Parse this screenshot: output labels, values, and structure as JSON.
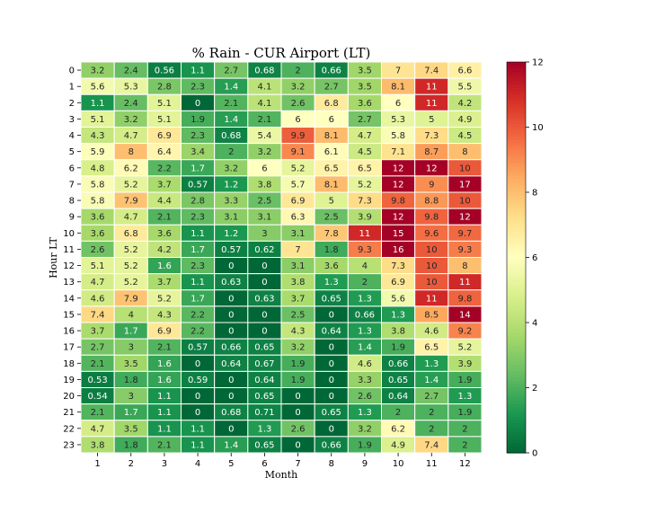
{
  "chart_data": {
    "type": "heatmap",
    "title": "% Rain - CUR Airport (LT)",
    "xlabel": "Month",
    "ylabel": "Hour LT",
    "x_categories": [
      "1",
      "2",
      "3",
      "4",
      "5",
      "6",
      "7",
      "8",
      "9",
      "10",
      "11",
      "12"
    ],
    "y_categories": [
      "0",
      "1",
      "2",
      "3",
      "4",
      "5",
      "6",
      "7",
      "8",
      "9",
      "10",
      "11",
      "12",
      "13",
      "14",
      "15",
      "16",
      "17",
      "18",
      "19",
      "20",
      "21",
      "22",
      "23"
    ],
    "values": [
      [
        3.2,
        2.4,
        0.56,
        1.1,
        2.7,
        0.68,
        2,
        0.66,
        3.5,
        7,
        7.4,
        6.6
      ],
      [
        5.6,
        5.3,
        2.8,
        2.3,
        1.4,
        4.1,
        3.2,
        2.7,
        3.5,
        8.1,
        11,
        5.5
      ],
      [
        1.1,
        2.4,
        5.1,
        0,
        2.1,
        4.1,
        2.6,
        6.8,
        3.6,
        6,
        11,
        4.2
      ],
      [
        5.1,
        3.2,
        5.1,
        1.9,
        1.4,
        2.1,
        6,
        6,
        2.7,
        5.3,
        5,
        4.9
      ],
      [
        4.3,
        4.7,
        6.9,
        2.3,
        0.68,
        5.4,
        9.9,
        8.1,
        4.7,
        5.8,
        7.3,
        4.5
      ],
      [
        5.9,
        8,
        6.4,
        3.4,
        2,
        3.2,
        9.1,
        6.1,
        4.5,
        7.1,
        8.7,
        8
      ],
      [
        4.8,
        6.2,
        2.2,
        1.7,
        3.2,
        6,
        5.2,
        6.5,
        6.5,
        12,
        12,
        10
      ],
      [
        5.8,
        5.2,
        3.7,
        0.57,
        1.2,
        3.8,
        5.7,
        8.1,
        5.2,
        12,
        9,
        17
      ],
      [
        5.8,
        7.9,
        4.4,
        2.8,
        3.3,
        2.5,
        6.9,
        5,
        7.3,
        9.8,
        8.8,
        10
      ],
      [
        3.6,
        4.7,
        2.1,
        2.3,
        3.1,
        3.1,
        6.3,
        2.5,
        3.9,
        12,
        9.8,
        12
      ],
      [
        3.6,
        6.8,
        3.6,
        1.1,
        1.2,
        3,
        3.1,
        7.8,
        11,
        15,
        9.6,
        9.7
      ],
      [
        2.6,
        5.2,
        4.2,
        1.7,
        0.57,
        0.62,
        7,
        1.8,
        9.3,
        16,
        10,
        9.3
      ],
      [
        5.1,
        5.2,
        1.6,
        2.3,
        0,
        0,
        3.1,
        3.6,
        4,
        7.3,
        10,
        8
      ],
      [
        4.7,
        5.2,
        3.7,
        1.1,
        0.63,
        0,
        3.8,
        1.3,
        2,
        6.9,
        10,
        11
      ],
      [
        4.6,
        7.9,
        5.2,
        1.7,
        0,
        0.63,
        3.7,
        0.65,
        1.3,
        5.6,
        11,
        9.8
      ],
      [
        7.4,
        4,
        4.3,
        2.2,
        0,
        0,
        2.5,
        0,
        0.66,
        1.3,
        8.5,
        14
      ],
      [
        3.7,
        1.7,
        6.9,
        2.2,
        0,
        0,
        4.3,
        0.64,
        1.3,
        3.8,
        4.6,
        9.2
      ],
      [
        2.7,
        3,
        2.1,
        0.57,
        0.66,
        0.65,
        3.2,
        0,
        1.4,
        1.9,
        6.5,
        5.2
      ],
      [
        2.1,
        3.5,
        1.6,
        0,
        0.64,
        0.67,
        1.9,
        0,
        4.6,
        0.66,
        1.3,
        3.9
      ],
      [
        0.53,
        1.8,
        1.6,
        0.59,
        0,
        0.64,
        1.9,
        0,
        3.3,
        0.65,
        1.4,
        1.9
      ],
      [
        0.54,
        3,
        1.1,
        0,
        0,
        0.65,
        0,
        0,
        2.6,
        0.64,
        2.7,
        1.3
      ],
      [
        2.1,
        1.7,
        1.1,
        0,
        0.68,
        0.71,
        0,
        0.65,
        1.3,
        2,
        2,
        1.9
      ],
      [
        4.7,
        3.5,
        1.1,
        1.1,
        0,
        1.3,
        2.6,
        0,
        3.2,
        6.2,
        2,
        2
      ],
      [
        3.8,
        1.8,
        2.1,
        1.1,
        1.4,
        0.65,
        0,
        0.66,
        1.9,
        4.9,
        7.4,
        2
      ]
    ],
    "value_labels": [
      [
        "3.2",
        "2.4",
        "0.56",
        "1.1",
        "2.7",
        "0.68",
        "2",
        "0.66",
        "3.5",
        "7",
        "7.4",
        "6.6"
      ],
      [
        "5.6",
        "5.3",
        "2.8",
        "2.3",
        "1.4",
        "4.1",
        "3.2",
        "2.7",
        "3.5",
        "8.1",
        "11",
        "5.5"
      ],
      [
        "1.1",
        "2.4",
        "5.1",
        "0",
        "2.1",
        "4.1",
        "2.6",
        "6.8",
        "3.6",
        "6",
        "11",
        "4.2"
      ],
      [
        "5.1",
        "3.2",
        "5.1",
        "1.9",
        "1.4",
        "2.1",
        "6",
        "6",
        "2.7",
        "5.3",
        "5",
        "4.9"
      ],
      [
        "4.3",
        "4.7",
        "6.9",
        "2.3",
        "0.68",
        "5.4",
        "9.9",
        "8.1",
        "4.7",
        "5.8",
        "7.3",
        "4.5"
      ],
      [
        "5.9",
        "8",
        "6.4",
        "3.4",
        "2",
        "3.2",
        "9.1",
        "6.1",
        "4.5",
        "7.1",
        "8.7",
        "8"
      ],
      [
        "4.8",
        "6.2",
        "2.2",
        "1.7",
        "3.2",
        "6",
        "5.2",
        "6.5",
        "6.5",
        "12",
        "12",
        "10"
      ],
      [
        "5.8",
        "5.2",
        "3.7",
        "0.57",
        "1.2",
        "3.8",
        "5.7",
        "8.1",
        "5.2",
        "12",
        "9",
        "17"
      ],
      [
        "5.8",
        "7.9",
        "4.4",
        "2.8",
        "3.3",
        "2.5",
        "6.9",
        "5",
        "7.3",
        "9.8",
        "8.8",
        "10"
      ],
      [
        "3.6",
        "4.7",
        "2.1",
        "2.3",
        "3.1",
        "3.1",
        "6.3",
        "2.5",
        "3.9",
        "12",
        "9.8",
        "12"
      ],
      [
        "3.6",
        "6.8",
        "3.6",
        "1.1",
        "1.2",
        "3",
        "3.1",
        "7.8",
        "11",
        "15",
        "9.6",
        "9.7"
      ],
      [
        "2.6",
        "5.2",
        "4.2",
        "1.7",
        "0.57",
        "0.62",
        "7",
        "1.8",
        "9.3",
        "16",
        "10",
        "9.3"
      ],
      [
        "5.1",
        "5.2",
        "1.6",
        "2.3",
        "0",
        "0",
        "3.1",
        "3.6",
        "4",
        "7.3",
        "10",
        "8"
      ],
      [
        "4.7",
        "5.2",
        "3.7",
        "1.1",
        "0.63",
        "0",
        "3.8",
        "1.3",
        "2",
        "6.9",
        "10",
        "11"
      ],
      [
        "4.6",
        "7.9",
        "5.2",
        "1.7",
        "0",
        "0.63",
        "3.7",
        "0.65",
        "1.3",
        "5.6",
        "11",
        "9.8"
      ],
      [
        "7.4",
        "4",
        "4.3",
        "2.2",
        "0",
        "0",
        "2.5",
        "0",
        "0.66",
        "1.3",
        "8.5",
        "14"
      ],
      [
        "3.7",
        "1.7",
        "6.9",
        "2.2",
        "0",
        "0",
        "4.3",
        "0.64",
        "1.3",
        "3.8",
        "4.6",
        "9.2"
      ],
      [
        "2.7",
        "3",
        "2.1",
        "0.57",
        "0.66",
        "0.65",
        "3.2",
        "0",
        "1.4",
        "1.9",
        "6.5",
        "5.2"
      ],
      [
        "2.1",
        "3.5",
        "1.6",
        "0",
        "0.64",
        "0.67",
        "1.9",
        "0",
        "4.6",
        "0.66",
        "1.3",
        "3.9"
      ],
      [
        "0.53",
        "1.8",
        "1.6",
        "0.59",
        "0",
        "0.64",
        "1.9",
        "0",
        "3.3",
        "0.65",
        "1.4",
        "1.9"
      ],
      [
        "0.54",
        "3",
        "1.1",
        "0",
        "0",
        "0.65",
        "0",
        "0",
        "2.6",
        "0.64",
        "2.7",
        "1.3"
      ],
      [
        "2.1",
        "1.7",
        "1.1",
        "0",
        "0.68",
        "0.71",
        "0",
        "0.65",
        "1.3",
        "2",
        "2",
        "1.9"
      ],
      [
        "4.7",
        "3.5",
        "1.1",
        "1.1",
        "0",
        "1.3",
        "2.6",
        "0",
        "3.2",
        "6.2",
        "2",
        "2"
      ],
      [
        "3.8",
        "1.8",
        "2.1",
        "1.1",
        "1.4",
        "0.65",
        "0",
        "0.66",
        "1.9",
        "4.9",
        "7.4",
        "2"
      ]
    ],
    "colorbar": {
      "min": 0,
      "max": 12,
      "ticks": [
        "0",
        "2",
        "4",
        "6",
        "8",
        "10",
        "12"
      ],
      "colormap": "RdYlGn_r",
      "colors": [
        "#006837",
        "#1a9850",
        "#66bd63",
        "#a6d96a",
        "#d9ef8b",
        "#ffffbf",
        "#fee08b",
        "#fdae61",
        "#f46d43",
        "#d73027",
        "#a50026"
      ]
    },
    "grid": true,
    "legend": "colorbar right"
  }
}
